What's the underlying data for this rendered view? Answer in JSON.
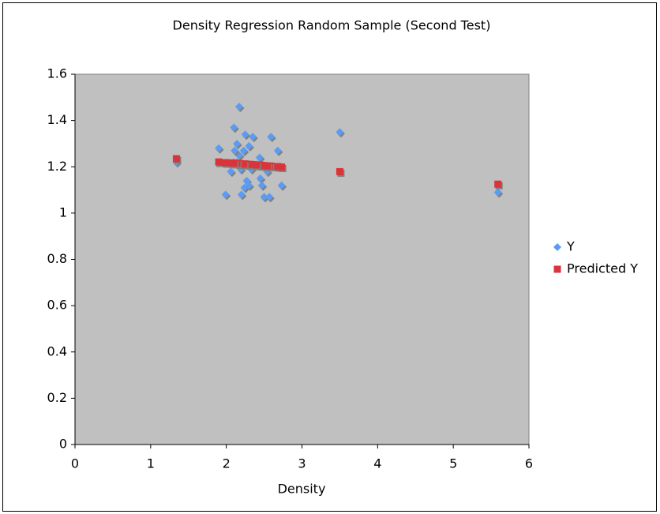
{
  "chart_data": {
    "type": "scatter",
    "title": "Density Regression Random Sample (Second Test)",
    "x_label": "Density",
    "xlim": [
      0,
      6
    ],
    "xticks": [
      0,
      1,
      2,
      3,
      4,
      5,
      6
    ],
    "ylim": [
      0,
      1.6
    ],
    "yticks": [
      0,
      0.2,
      0.4,
      0.6,
      0.8,
      1,
      1.2,
      1.4,
      1.6
    ],
    "legend": "right",
    "series": [
      {
        "name": "Y",
        "color": "#5b9cf2",
        "marker": "diamond",
        "x": [
          1.34,
          3.5,
          5.59,
          1.9,
          1.99,
          2.06,
          2.1,
          2.17,
          2.14,
          2.25,
          2.35,
          2.3,
          2.59,
          2.68,
          2.73,
          2.44,
          2.45,
          2.47,
          2.5,
          2.57,
          2.54,
          2.2,
          2.24,
          2.27,
          2.3,
          2.17,
          2.19,
          2.33,
          2.4,
          2.11,
          2.23,
          2.14,
          2.1
        ],
        "values": [
          1.22,
          1.35,
          1.09,
          1.28,
          1.08,
          1.18,
          1.37,
          1.46,
          1.3,
          1.34,
          1.33,
          1.29,
          1.33,
          1.27,
          1.12,
          1.24,
          1.15,
          1.12,
          1.07,
          1.07,
          1.18,
          1.08,
          1.11,
          1.14,
          1.12,
          1.25,
          1.19,
          1.19,
          1.21,
          1.27,
          1.27,
          1.22,
          1.22
        ]
      },
      {
        "name": "Predicted Y",
        "color": "#d9343a",
        "marker": "square",
        "x": [
          1.34,
          3.5,
          5.59,
          1.9,
          1.99,
          2.06,
          2.1,
          2.17,
          2.14,
          2.25,
          2.35,
          2.3,
          2.59,
          2.68,
          2.73,
          2.44,
          2.45,
          2.47,
          2.5,
          2.57,
          2.54,
          2.2,
          2.24,
          2.27,
          2.3,
          2.17,
          2.19,
          2.33,
          2.4,
          2.11,
          2.23,
          2.14,
          2.1
        ],
        "values": [
          1.235,
          1.179,
          1.125,
          1.221,
          1.218,
          1.217,
          1.216,
          1.214,
          1.215,
          1.212,
          1.209,
          1.21,
          1.203,
          1.201,
          1.199,
          1.207,
          1.207,
          1.206,
          1.205,
          1.203,
          1.204,
          1.213,
          1.212,
          1.211,
          1.21,
          1.214,
          1.213,
          1.21,
          1.208,
          1.215,
          1.212,
          1.215,
          1.216
        ]
      }
    ]
  }
}
